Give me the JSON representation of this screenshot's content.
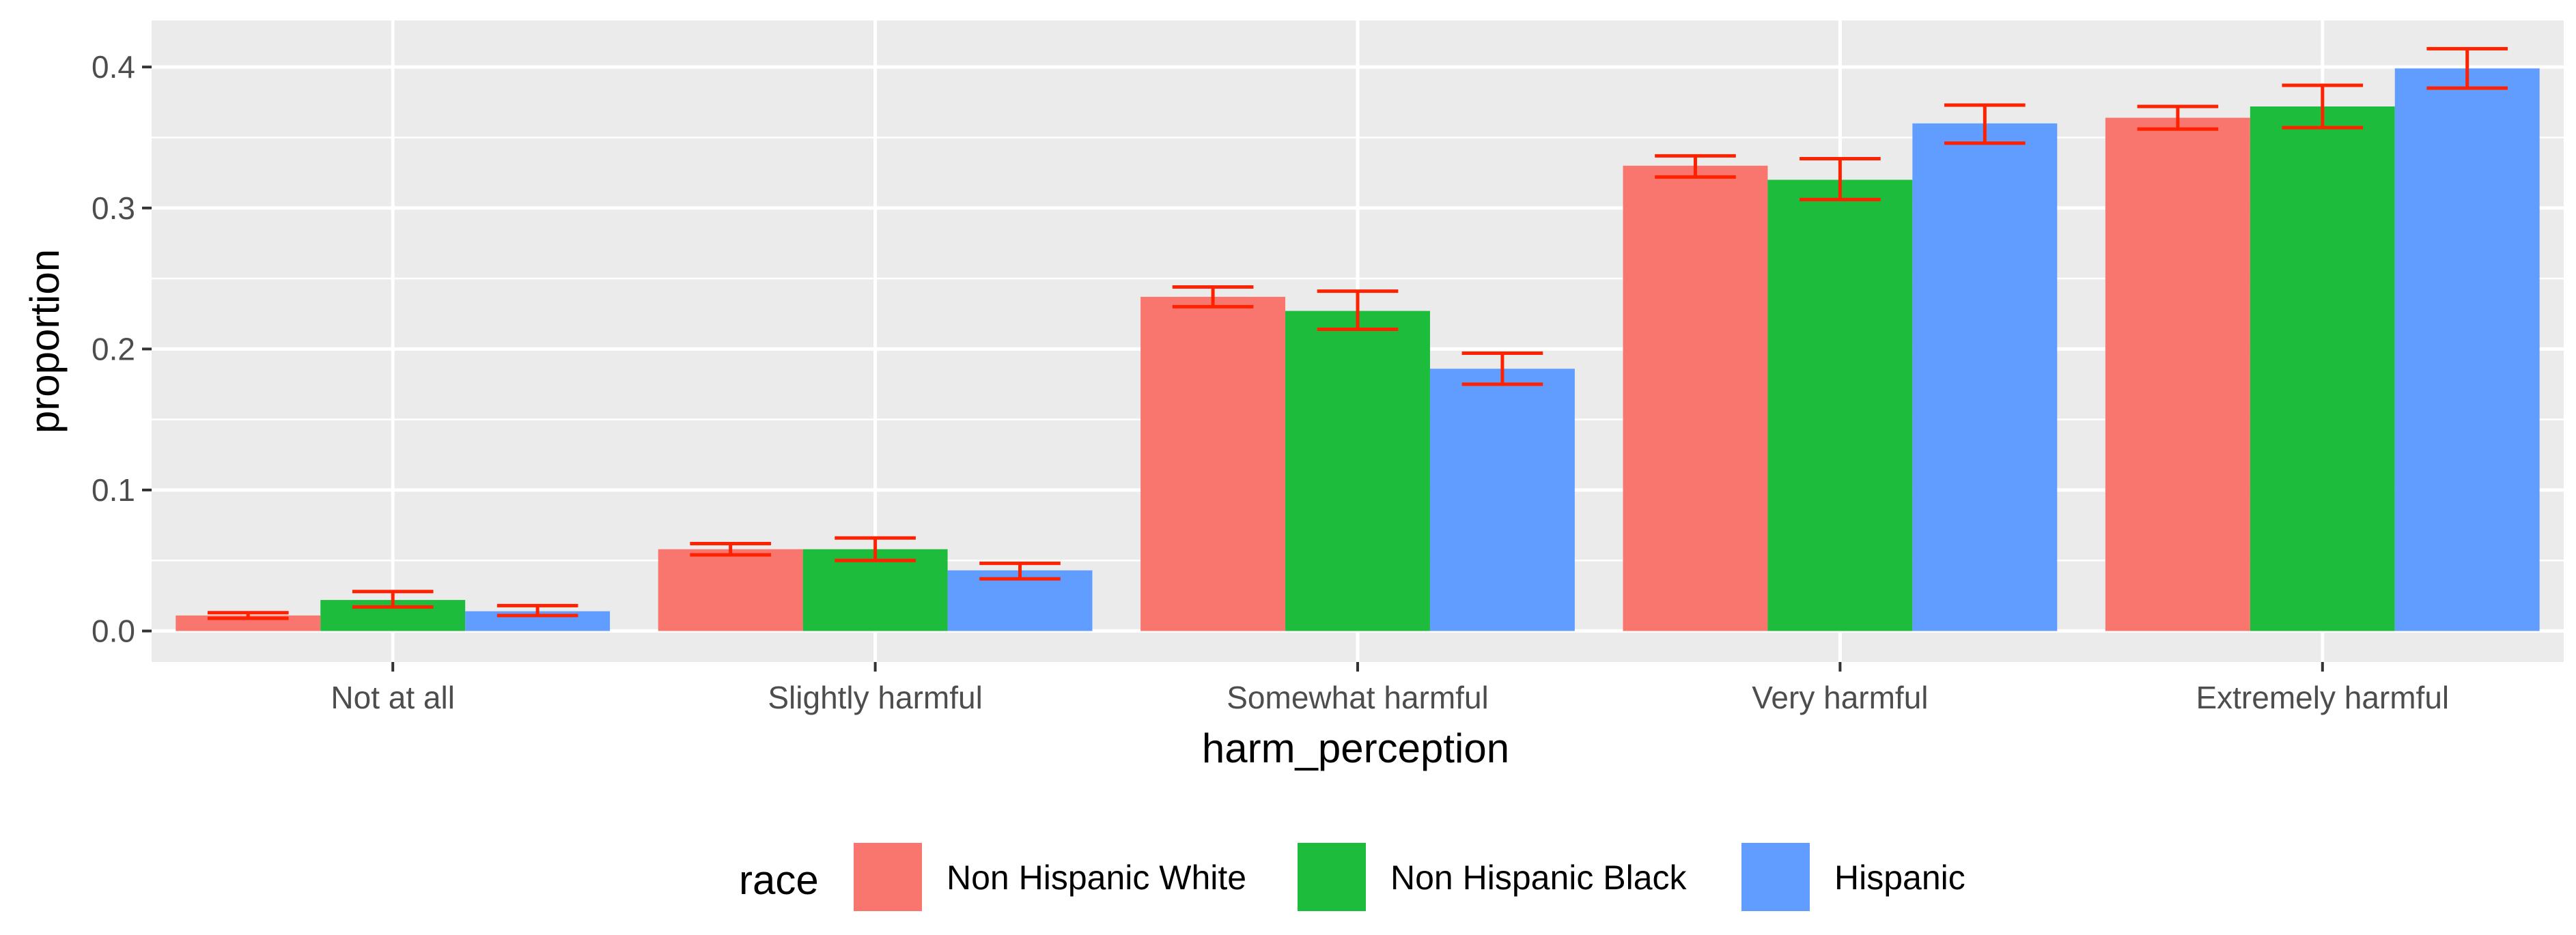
{
  "chart_data": {
    "type": "bar",
    "xlabel": "harm_perception",
    "ylabel": "proportion",
    "ylim": [
      -0.022,
      0.433
    ],
    "yticks": [
      0.0,
      0.1,
      0.2,
      0.3,
      0.4
    ],
    "ytick_labels": [
      "0.0",
      "0.1",
      "0.2",
      "0.3",
      "0.4"
    ],
    "categories": [
      "Not at all",
      "Slightly harmful",
      "Somewhat harmful",
      "Very harmful",
      "Extremely harmful"
    ],
    "legend_title": "race",
    "legend_position": "bottom",
    "grid": true,
    "error_bar_color": "#ff2200",
    "series": [
      {
        "name": "Non Hispanic White",
        "color": "#f8766d",
        "values": [
          0.011,
          0.058,
          0.237,
          0.33,
          0.364
        ],
        "error_low": [
          0.009,
          0.054,
          0.23,
          0.322,
          0.356
        ],
        "error_high": [
          0.013,
          0.062,
          0.244,
          0.337,
          0.372
        ]
      },
      {
        "name": "Non Hispanic Black",
        "color": "#1ebc3c",
        "values": [
          0.022,
          0.058,
          0.227,
          0.32,
          0.372
        ],
        "error_low": [
          0.017,
          0.05,
          0.214,
          0.306,
          0.357
        ],
        "error_high": [
          0.028,
          0.066,
          0.241,
          0.335,
          0.387
        ]
      },
      {
        "name": "Hispanic",
        "color": "#619cff",
        "values": [
          0.014,
          0.043,
          0.186,
          0.36,
          0.399
        ],
        "error_low": [
          0.011,
          0.037,
          0.175,
          0.346,
          0.385
        ],
        "error_high": [
          0.018,
          0.048,
          0.197,
          0.373,
          0.413
        ]
      }
    ]
  }
}
